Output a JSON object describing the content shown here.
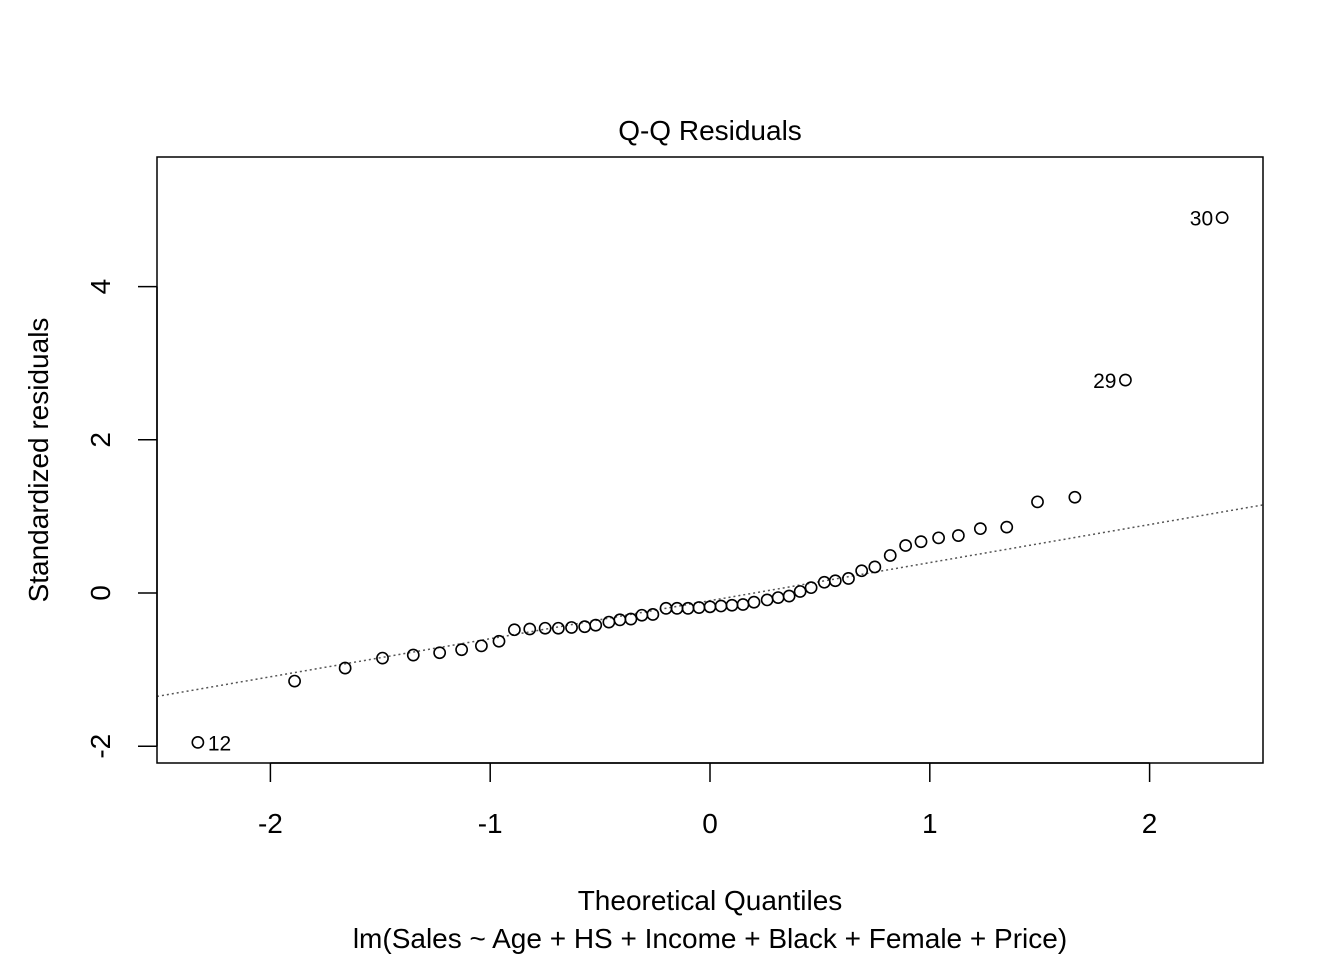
{
  "chart_data": {
    "type": "scatter",
    "title": "Q-Q Residuals",
    "xlabel": "Theoretical Quantiles",
    "subtitle": "lm(Sales ~ Age + HS + Income + Black + Female + Price)",
    "ylabel": "Standardized residuals",
    "xlim": [
      -2.5,
      2.5
    ],
    "ylim": [
      -2.2,
      5.75
    ],
    "x_ticks": [
      -2,
      -1,
      0,
      1,
      2
    ],
    "x_tick_labels": [
      "-2",
      "-1",
      "0",
      "1",
      "2"
    ],
    "y_ticks": [
      -2,
      0,
      2,
      4
    ],
    "y_tick_labels": [
      "-2",
      "0",
      "2",
      "4"
    ],
    "grid": false,
    "marker": "open-circle",
    "reference_line": {
      "style": "dotted",
      "color": "#555555",
      "slope": 0.5,
      "intercept": -0.1
    },
    "points": [
      {
        "x": -2.33,
        "y": -1.95
      },
      {
        "x": -1.89,
        "y": -1.15
      },
      {
        "x": -1.66,
        "y": -0.98
      },
      {
        "x": -1.49,
        "y": -0.85
      },
      {
        "x": -1.35,
        "y": -0.81
      },
      {
        "x": -1.23,
        "y": -0.78
      },
      {
        "x": -1.13,
        "y": -0.74
      },
      {
        "x": -1.04,
        "y": -0.69
      },
      {
        "x": -0.96,
        "y": -0.63
      },
      {
        "x": -0.89,
        "y": -0.48
      },
      {
        "x": -0.82,
        "y": -0.47
      },
      {
        "x": -0.75,
        "y": -0.46
      },
      {
        "x": -0.69,
        "y": -0.46
      },
      {
        "x": -0.63,
        "y": -0.45
      },
      {
        "x": -0.57,
        "y": -0.44
      },
      {
        "x": -0.52,
        "y": -0.42
      },
      {
        "x": -0.46,
        "y": -0.38
      },
      {
        "x": -0.41,
        "y": -0.35
      },
      {
        "x": -0.36,
        "y": -0.34
      },
      {
        "x": -0.31,
        "y": -0.29
      },
      {
        "x": -0.26,
        "y": -0.28
      },
      {
        "x": -0.2,
        "y": -0.2
      },
      {
        "x": -0.15,
        "y": -0.2
      },
      {
        "x": -0.1,
        "y": -0.2
      },
      {
        "x": -0.05,
        "y": -0.19
      },
      {
        "x": 0.0,
        "y": -0.18
      },
      {
        "x": 0.05,
        "y": -0.17
      },
      {
        "x": 0.1,
        "y": -0.16
      },
      {
        "x": 0.15,
        "y": -0.15
      },
      {
        "x": 0.2,
        "y": -0.12
      },
      {
        "x": 0.26,
        "y": -0.09
      },
      {
        "x": 0.31,
        "y": -0.06
      },
      {
        "x": 0.36,
        "y": -0.04
      },
      {
        "x": 0.41,
        "y": 0.02
      },
      {
        "x": 0.46,
        "y": 0.07
      },
      {
        "x": 0.52,
        "y": 0.14
      },
      {
        "x": 0.57,
        "y": 0.16
      },
      {
        "x": 0.63,
        "y": 0.19
      },
      {
        "x": 0.69,
        "y": 0.29
      },
      {
        "x": 0.75,
        "y": 0.34
      },
      {
        "x": 0.82,
        "y": 0.49
      },
      {
        "x": 0.89,
        "y": 0.62
      },
      {
        "x": 0.96,
        "y": 0.67
      },
      {
        "x": 1.04,
        "y": 0.72
      },
      {
        "x": 1.13,
        "y": 0.75
      },
      {
        "x": 1.23,
        "y": 0.84
      },
      {
        "x": 1.35,
        "y": 0.86
      },
      {
        "x": 1.49,
        "y": 1.19
      },
      {
        "x": 1.66,
        "y": 1.25
      },
      {
        "x": 1.89,
        "y": 2.78,
        "label": "29"
      },
      {
        "x": 2.33,
        "y": 4.9,
        "label": "30"
      }
    ],
    "labeled_points": [
      {
        "label": "12",
        "x": -2.33,
        "y": -1.95,
        "side": "right"
      },
      {
        "label": "29",
        "x": 1.89,
        "y": 2.78,
        "side": "left"
      },
      {
        "label": "30",
        "x": 2.33,
        "y": 4.9,
        "side": "left"
      }
    ]
  }
}
